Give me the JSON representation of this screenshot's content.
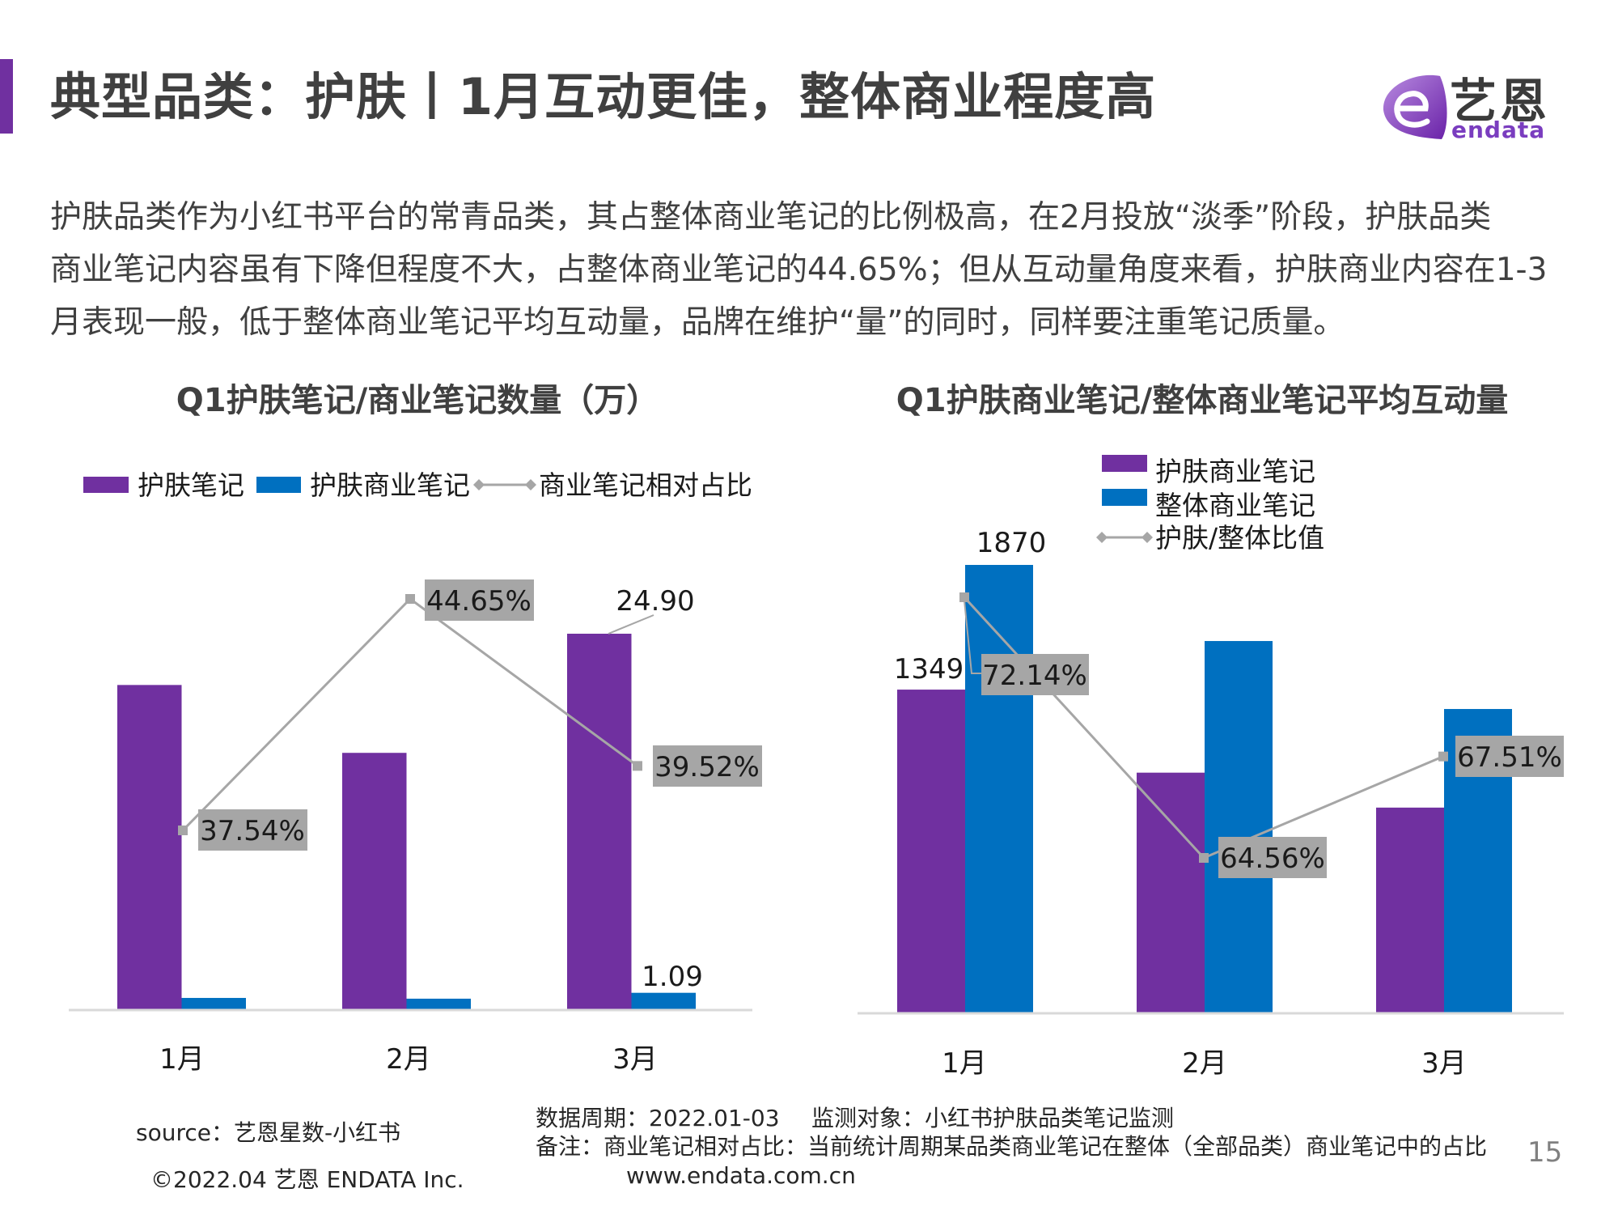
{
  "page": {
    "title": "典型品类：护肤丨1月互动更佳，整体商业程度高",
    "logo": {
      "cn": "艺恩",
      "en": "endata"
    },
    "intro_lines": [
      "护肤品类作为小红书平台的常青品类，其占整体商业笔记的比例极高，在2月投放“淡季”阶段，护肤品类",
      "商业笔记内容虽有下降但程度不大，占整体商业笔记的44.65%；但从互动量角度来看，护肤商业内容在1-3",
      "月表现一般，低于整体商业笔记平均互动量，品牌在维护“量”的同时，同样要注重笔记质量。"
    ],
    "page_number": "15"
  },
  "footer": {
    "source": "source：艺恩星数-小红书",
    "copyright": "©2022.04 艺恩 ENDATA Inc.",
    "period": "数据周期：2022.01-03",
    "monitor": "监测对象：小红书护肤品类笔记监测",
    "note": "备注：商业笔记相对占比：当前统计周期某品类商业笔记在整体（全部品类）商业笔记中的占比",
    "website": "www.endata.com.cn"
  },
  "colors": {
    "purple": "#7030A0",
    "blue": "#0070C0",
    "gray": "#A6A6A6",
    "axis": "#D9D9D9"
  },
  "chart_data": [
    {
      "type": "bar",
      "title": "Q1护肤笔记/商业笔记数量（万）",
      "categories": [
        "1月",
        "2月",
        "3月"
      ],
      "series": [
        {
          "name": "护肤笔记",
          "type": "bar",
          "color": "#7030A0",
          "values": [
            21.5,
            17.0,
            24.9
          ],
          "labels": [
            null,
            null,
            "24.90"
          ]
        },
        {
          "name": "护肤商业笔记",
          "type": "bar",
          "color": "#0070C0",
          "values": [
            0.75,
            0.7,
            1.09
          ],
          "labels": [
            null,
            null,
            "1.09"
          ]
        },
        {
          "name": "商业笔记相对占比",
          "type": "line",
          "color": "#A6A6A6",
          "values": [
            37.54,
            44.65,
            39.52
          ],
          "labels": [
            "37.54%",
            "44.65%",
            "39.52%"
          ],
          "unit": "%"
        }
      ],
      "xlabel": "",
      "ylabel": "",
      "ylim": [
        0,
        28
      ],
      "secondary_ylim": [
        30,
        47
      ],
      "grid": false,
      "legend": "top"
    },
    {
      "type": "bar",
      "title": "Q1护肤商业笔记/整体商业笔记平均互动量",
      "categories": [
        "1月",
        "2月",
        "3月"
      ],
      "series": [
        {
          "name": "护肤商业笔记",
          "type": "bar",
          "color": "#7030A0",
          "values": [
            1349,
            1002,
            856
          ],
          "labels": [
            "1349",
            null,
            null
          ]
        },
        {
          "name": "整体商业笔记",
          "type": "bar",
          "color": "#0070C0",
          "values": [
            1870,
            1552,
            1268
          ],
          "labels": [
            "1870",
            null,
            null
          ]
        },
        {
          "name": "护肤/整体比值",
          "type": "line",
          "color": "#A6A6A6",
          "values": [
            72.14,
            64.56,
            67.51
          ],
          "labels": [
            "72.14%",
            "64.56%",
            "67.51%"
          ],
          "unit": "%"
        }
      ],
      "xlabel": "",
      "ylabel": "",
      "ylim": [
        0,
        2000
      ],
      "secondary_ylim": [
        60,
        74
      ],
      "grid": false,
      "legend": "top-right"
    }
  ]
}
